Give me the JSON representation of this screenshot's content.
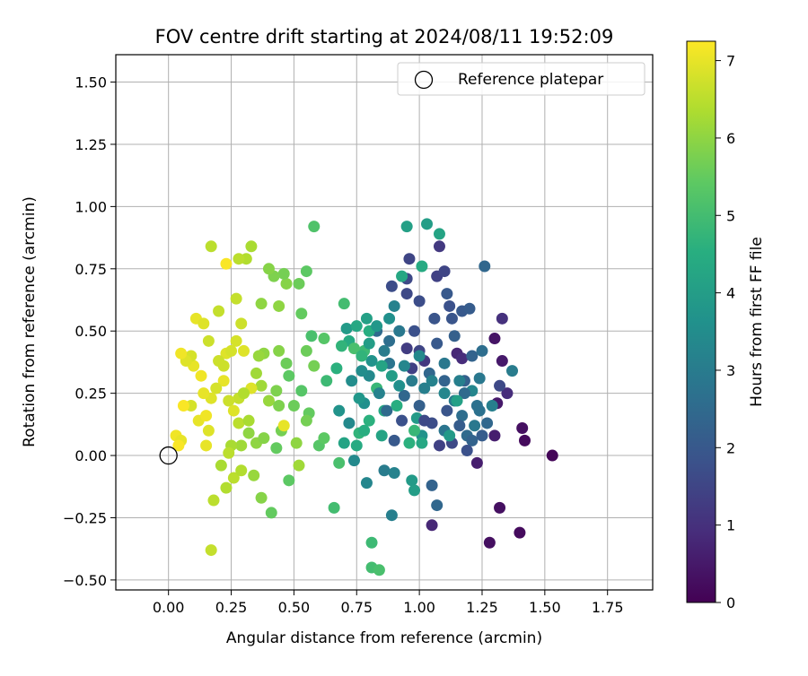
{
  "chart_data": {
    "type": "scatter",
    "title": "FOV centre drift starting at 2024/08/11 19:52:09",
    "xlabel": "Angular distance from reference (arcmin)",
    "ylabel": "Rotation from reference (arcmin)",
    "xlim": [
      -0.21,
      1.93
    ],
    "ylim": [
      -0.54,
      1.61
    ],
    "xticks": [
      "0.00",
      "0.25",
      "0.50",
      "0.75",
      "1.00",
      "1.25",
      "1.50",
      "1.75"
    ],
    "xtick_values": [
      0,
      0.25,
      0.5,
      0.75,
      1.0,
      1.25,
      1.5,
      1.75
    ],
    "yticks": [
      "−0.50",
      "−0.25",
      "0.00",
      "0.25",
      "0.50",
      "0.75",
      "1.00",
      "1.25",
      "1.50"
    ],
    "ytick_values": [
      -0.5,
      -0.25,
      0,
      0.25,
      0.5,
      0.75,
      1.0,
      1.25,
      1.5
    ],
    "grid": true,
    "legend": {
      "position": "top-right",
      "label": "Reference platepar"
    },
    "reference_point": {
      "x": 0,
      "y": 0
    },
    "colorbar": {
      "label": "Hours from first FF file",
      "min": 0,
      "max": 7.25,
      "colormap": "viridis",
      "ticks": [
        "0",
        "1",
        "2",
        "3",
        "4",
        "5",
        "6",
        "7"
      ],
      "tick_values": [
        0,
        1,
        2,
        3,
        4,
        5,
        6,
        7
      ]
    },
    "points": [
      [
        1.53,
        0.0,
        0.1
      ],
      [
        1.4,
        -0.31,
        0.2
      ],
      [
        1.42,
        0.06,
        0.2
      ],
      [
        1.41,
        0.11,
        0.3
      ],
      [
        1.32,
        -0.21,
        0.3
      ],
      [
        1.33,
        0.38,
        0.5
      ],
      [
        1.28,
        -0.35,
        0.3
      ],
      [
        1.3,
        0.47,
        0.4
      ],
      [
        1.31,
        0.21,
        0.5
      ],
      [
        1.3,
        0.08,
        0.6
      ],
      [
        1.33,
        0.55,
        1.0
      ],
      [
        1.35,
        0.25,
        0.9
      ],
      [
        1.05,
        -0.28,
        0.8
      ],
      [
        1.23,
        -0.03,
        0.6
      ],
      [
        1.15,
        0.41,
        0.8
      ],
      [
        1.17,
        0.39,
        0.9
      ],
      [
        1.08,
        0.84,
        1.2
      ],
      [
        1.32,
        0.28,
        1.6
      ],
      [
        0.96,
        0.79,
        1.5
      ],
      [
        0.95,
        0.71,
        1.6
      ],
      [
        0.89,
        0.68,
        1.7
      ],
      [
        0.95,
        0.65,
        1.6
      ],
      [
        1.0,
        0.62,
        1.7
      ],
      [
        1.07,
        0.72,
        1.4
      ],
      [
        1.1,
        0.74,
        1.5
      ],
      [
        1.12,
        0.6,
        1.8
      ],
      [
        1.13,
        0.55,
        1.9
      ],
      [
        0.98,
        0.5,
        1.8
      ],
      [
        1.07,
        0.45,
        2.0
      ],
      [
        1.17,
        0.58,
        2.0
      ],
      [
        1.2,
        0.59,
        2.1
      ],
      [
        1.21,
        0.4,
        2.3
      ],
      [
        1.18,
        0.3,
        2.2
      ],
      [
        1.1,
        0.3,
        2.3
      ],
      [
        1.0,
        0.2,
        2.2
      ],
      [
        0.94,
        0.24,
        2.4
      ],
      [
        1.05,
        -0.12,
        2.3
      ],
      [
        1.07,
        -0.2,
        2.4
      ],
      [
        1.19,
        0.08,
        2.5
      ],
      [
        1.25,
        0.42,
        2.6
      ],
      [
        1.23,
        0.2,
        2.7
      ],
      [
        1.26,
        0.76,
        2.4
      ],
      [
        0.83,
        0.5,
        2.5
      ],
      [
        0.88,
        0.37,
        2.8
      ],
      [
        0.86,
        -0.06,
        3.0
      ],
      [
        0.89,
        -0.24,
        3.1
      ],
      [
        0.9,
        -0.07,
        3.2
      ],
      [
        0.79,
        -0.11,
        3.3
      ],
      [
        0.74,
        -0.02,
        3.4
      ],
      [
        0.78,
        0.21,
        3.6
      ],
      [
        0.76,
        0.23,
        3.8
      ],
      [
        0.73,
        0.3,
        3.5
      ],
      [
        0.71,
        0.51,
        3.9
      ],
      [
        1.01,
        0.08,
        3.7
      ],
      [
        0.99,
        0.15,
        3.9
      ],
      [
        1.1,
        0.25,
        3.3
      ],
      [
        1.14,
        0.22,
        3.0
      ],
      [
        1.37,
        0.34,
        3.0
      ],
      [
        1.29,
        0.2,
        3.1
      ],
      [
        1.22,
        0.12,
        2.9
      ],
      [
        1.17,
        0.16,
        2.6
      ],
      [
        1.1,
        0.1,
        2.8
      ],
      [
        0.97,
        -0.1,
        3.9
      ],
      [
        0.98,
        -0.14,
        4.0
      ],
      [
        0.85,
        0.08,
        4.2
      ],
      [
        0.86,
        0.18,
        4.3
      ],
      [
        0.95,
        0.92,
        4.1
      ],
      [
        1.03,
        0.93,
        4.0
      ],
      [
        1.08,
        0.89,
        4.2
      ],
      [
        1.01,
        0.76,
        4.4
      ],
      [
        0.93,
        0.72,
        4.3
      ],
      [
        0.8,
        0.5,
        4.5
      ],
      [
        0.72,
        0.46,
        4.4
      ],
      [
        0.67,
        0.35,
        4.6
      ],
      [
        0.69,
        0.44,
        4.7
      ],
      [
        0.57,
        0.48,
        5.1
      ],
      [
        0.58,
        0.92,
        5.2
      ],
      [
        0.63,
        0.3,
        4.9
      ],
      [
        0.66,
        -0.21,
        5.0
      ],
      [
        0.68,
        -0.03,
        5.1
      ],
      [
        0.81,
        -0.35,
        4.9
      ],
      [
        0.81,
        -0.45,
        5.0
      ],
      [
        0.84,
        -0.46,
        5.1
      ],
      [
        0.83,
        0.27,
        4.8
      ],
      [
        0.8,
        0.14,
        4.6
      ],
      [
        0.76,
        0.09,
        4.7
      ],
      [
        0.78,
        0.42,
        4.9
      ],
      [
        0.74,
        0.43,
        5.1
      ],
      [
        0.7,
        0.61,
        5.0
      ],
      [
        0.62,
        0.47,
        5.3
      ],
      [
        0.55,
        0.74,
        5.4
      ],
      [
        0.52,
        0.69,
        5.6
      ],
      [
        0.53,
        0.57,
        5.5
      ],
      [
        0.55,
        0.42,
        5.6
      ],
      [
        0.58,
        0.36,
        5.7
      ],
      [
        0.53,
        0.26,
        5.3
      ],
      [
        0.56,
        0.17,
        5.5
      ],
      [
        0.55,
        0.14,
        5.7
      ],
      [
        0.47,
        0.37,
        5.6
      ],
      [
        0.44,
        0.42,
        5.9
      ],
      [
        0.47,
        0.69,
        5.9
      ],
      [
        0.46,
        0.73,
        5.7
      ],
      [
        0.42,
        0.72,
        5.8
      ],
      [
        0.4,
        0.75,
        5.9
      ],
      [
        0.44,
        0.6,
        6.0
      ],
      [
        0.37,
        0.61,
        6.0
      ],
      [
        0.38,
        0.41,
        6.0
      ],
      [
        0.36,
        0.4,
        6.1
      ],
      [
        0.37,
        0.28,
        6.2
      ],
      [
        0.4,
        0.22,
        6.1
      ],
      [
        0.43,
        0.26,
        5.8
      ],
      [
        0.45,
        0.1,
        5.7
      ],
      [
        0.43,
        0.03,
        5.5
      ],
      [
        0.48,
        -0.1,
        5.4
      ],
      [
        0.41,
        -0.23,
        5.5
      ],
      [
        0.37,
        -0.17,
        5.9
      ],
      [
        0.34,
        -0.08,
        6.1
      ],
      [
        0.32,
        0.09,
        6.0
      ],
      [
        0.29,
        0.04,
        6.2
      ],
      [
        0.25,
        0.04,
        6.3
      ],
      [
        0.21,
        -0.04,
        6.3
      ],
      [
        0.23,
        -0.13,
        6.4
      ],
      [
        0.18,
        -0.18,
        6.5
      ],
      [
        0.17,
        -0.38,
        6.6
      ],
      [
        0.26,
        -0.09,
        6.5
      ],
      [
        0.29,
        -0.06,
        6.4
      ],
      [
        0.31,
        0.79,
        6.4
      ],
      [
        0.28,
        0.79,
        6.5
      ],
      [
        0.33,
        0.84,
        6.3
      ],
      [
        0.17,
        0.84,
        6.5
      ],
      [
        0.2,
        0.58,
        6.6
      ],
      [
        0.27,
        0.63,
        6.6
      ],
      [
        0.29,
        0.53,
        6.7
      ],
      [
        0.27,
        0.46,
        6.8
      ],
      [
        0.3,
        0.42,
        6.9
      ],
      [
        0.23,
        0.41,
        6.9
      ],
      [
        0.25,
        0.42,
        6.8
      ],
      [
        0.22,
        0.3,
        7.0
      ],
      [
        0.19,
        0.27,
        6.8
      ],
      [
        0.17,
        0.23,
        6.9
      ],
      [
        0.14,
        0.25,
        7.0
      ],
      [
        0.13,
        0.32,
        7.1
      ],
      [
        0.1,
        0.36,
        7.0
      ],
      [
        0.09,
        0.4,
        6.8
      ],
      [
        0.07,
        0.38,
        6.9
      ],
      [
        0.05,
        0.41,
        7.1
      ],
      [
        0.11,
        0.55,
        7.0
      ],
      [
        0.14,
        0.53,
        6.9
      ],
      [
        0.16,
        0.46,
        6.7
      ],
      [
        0.09,
        0.2,
        6.8
      ],
      [
        0.06,
        0.2,
        7.2
      ],
      [
        0.03,
        0.08,
        7.1
      ],
      [
        0.05,
        0.06,
        7.0
      ],
      [
        0.04,
        0.04,
        7.2
      ],
      [
        0.12,
        0.14,
        7.0
      ],
      [
        0.16,
        0.1,
        6.9
      ],
      [
        0.15,
        0.04,
        7.0
      ],
      [
        0.15,
        0.16,
        7.1
      ],
      [
        0.28,
        0.23,
        6.6
      ],
      [
        0.33,
        0.27,
        6.9
      ],
      [
        0.23,
        0.77,
        7.2
      ],
      [
        0.24,
        0.22,
        6.7
      ],
      [
        0.26,
        0.18,
        6.9
      ],
      [
        0.28,
        0.13,
        6.5
      ],
      [
        0.24,
        0.01,
        6.5
      ],
      [
        0.46,
        0.12,
        7.0
      ],
      [
        0.51,
        0.05,
        6.0
      ],
      [
        0.52,
        -0.04,
        6.2
      ],
      [
        0.6,
        0.04,
        5.3
      ],
      [
        0.62,
        0.07,
        5.4
      ],
      [
        0.48,
        0.32,
        5.4
      ],
      [
        0.5,
        0.2,
        5.6
      ],
      [
        0.44,
        0.2,
        5.8
      ],
      [
        0.35,
        0.33,
        6.2
      ],
      [
        0.3,
        0.25,
        6.4
      ],
      [
        0.2,
        0.38,
        6.7
      ],
      [
        0.22,
        0.36,
        6.7
      ],
      [
        0.32,
        0.14,
        6.3
      ],
      [
        0.35,
        0.05,
        6.0
      ],
      [
        0.38,
        0.07,
        5.9
      ],
      [
        0.88,
        0.46,
        2.6
      ],
      [
        0.92,
        0.5,
        2.9
      ],
      [
        0.97,
        0.3,
        3.0
      ],
      [
        1.02,
        0.27,
        3.1
      ],
      [
        1.04,
        0.33,
        2.4
      ],
      [
        1.06,
        0.55,
        1.9
      ],
      [
        1.11,
        0.65,
        2.0
      ],
      [
        1.14,
        0.48,
        2.2
      ],
      [
        1.0,
        0.42,
        1.5
      ],
      [
        0.95,
        0.43,
        1.3
      ],
      [
        1.02,
        0.38,
        1.2
      ],
      [
        0.97,
        0.35,
        1.4
      ],
      [
        1.05,
        0.13,
        1.7
      ],
      [
        1.11,
        0.18,
        1.9
      ],
      [
        1.16,
        0.12,
        2.1
      ],
      [
        1.21,
        0.06,
        2.3
      ],
      [
        1.25,
        0.08,
        2.1
      ],
      [
        1.27,
        0.13,
        2.4
      ],
      [
        1.19,
        0.02,
        1.8
      ],
      [
        1.13,
        0.05,
        1.6
      ],
      [
        1.08,
        0.04,
        1.4
      ],
      [
        1.02,
        0.14,
        1.6
      ],
      [
        0.93,
        0.14,
        1.8
      ],
      [
        0.9,
        0.06,
        2.0
      ],
      [
        0.87,
        0.18,
        2.5
      ],
      [
        0.84,
        0.25,
        3.2
      ],
      [
        0.8,
        0.32,
        3.4
      ],
      [
        0.81,
        0.38,
        3.7
      ],
      [
        0.77,
        0.34,
        3.5
      ],
      [
        0.72,
        0.13,
        3.4
      ],
      [
        0.68,
        0.18,
        3.7
      ],
      [
        0.7,
        0.05,
        4.2
      ],
      [
        0.75,
        0.04,
        4.4
      ],
      [
        0.78,
        0.1,
        4.5
      ],
      [
        0.94,
        0.36,
        3.3
      ],
      [
        0.92,
        0.28,
        3.6
      ],
      [
        1.0,
        0.4,
        3.4
      ],
      [
        1.05,
        0.3,
        3.2
      ],
      [
        1.1,
        0.37,
        2.9
      ],
      [
        1.16,
        0.3,
        3.1
      ],
      [
        1.21,
        0.26,
        3.3
      ],
      [
        1.24,
        0.31,
        2.9
      ],
      [
        1.24,
        0.18,
        2.7
      ],
      [
        1.18,
        0.25,
        2.5
      ],
      [
        1.15,
        0.22,
        4.1
      ],
      [
        1.12,
        0.08,
        3.9
      ],
      [
        1.01,
        0.05,
        4.3
      ],
      [
        0.96,
        0.05,
        4.6
      ],
      [
        0.98,
        0.1,
        4.8
      ],
      [
        0.91,
        0.2,
        4.5
      ],
      [
        0.89,
        0.32,
        4.0
      ],
      [
        0.85,
        0.36,
        4.2
      ],
      [
        0.8,
        0.45,
        4.0
      ],
      [
        0.77,
        0.4,
        4.7
      ],
      [
        0.75,
        0.52,
        4.3
      ],
      [
        0.79,
        0.55,
        4.1
      ],
      [
        0.83,
        0.52,
        3.8
      ],
      [
        0.88,
        0.55,
        3.6
      ],
      [
        0.9,
        0.6,
        3.2
      ],
      [
        0.86,
        0.42,
        3.0
      ]
    ]
  }
}
